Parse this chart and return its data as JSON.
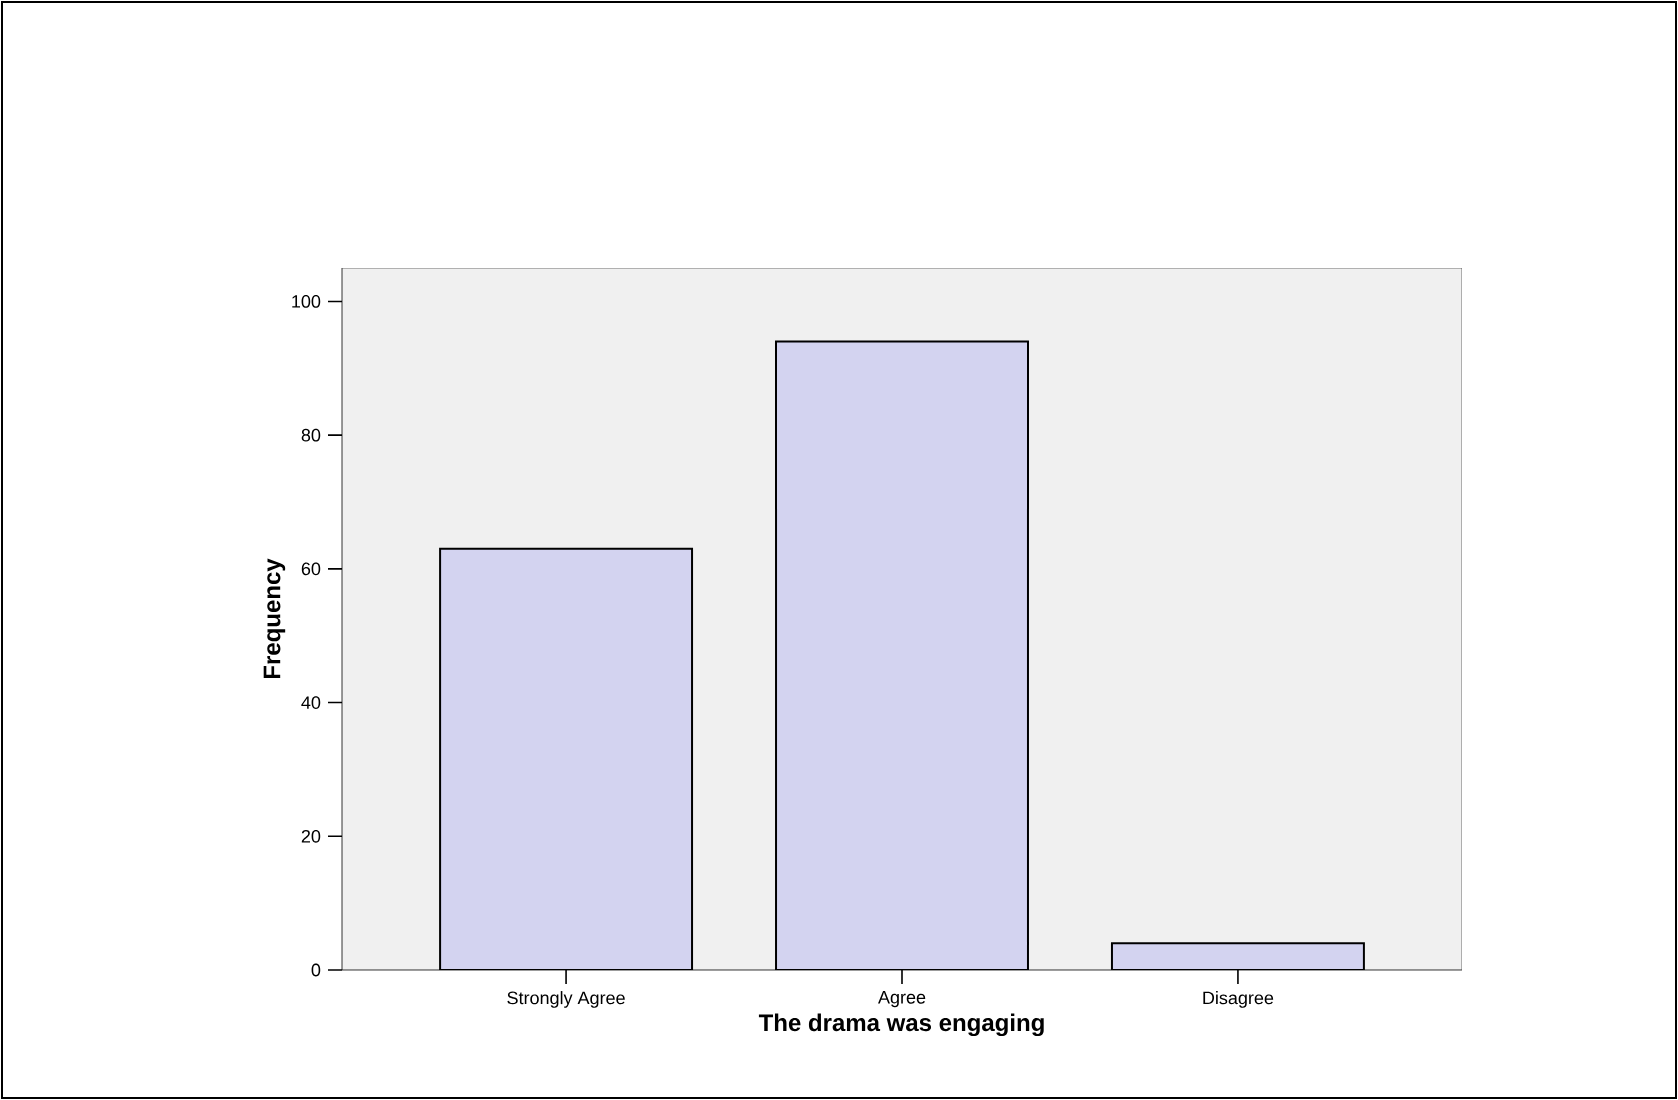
{
  "chart_data": {
    "type": "bar",
    "xlabel": "The drama was engaging",
    "ylabel": "Frequency",
    "categories": [
      "Strongly Agree",
      "Agree",
      "Disagree"
    ],
    "values": [
      63,
      94,
      4
    ],
    "color": "#d3d3f0",
    "ylim": [
      0,
      105
    ],
    "yticks": [
      0,
      20,
      40,
      60,
      80,
      100
    ],
    "grid": false
  }
}
